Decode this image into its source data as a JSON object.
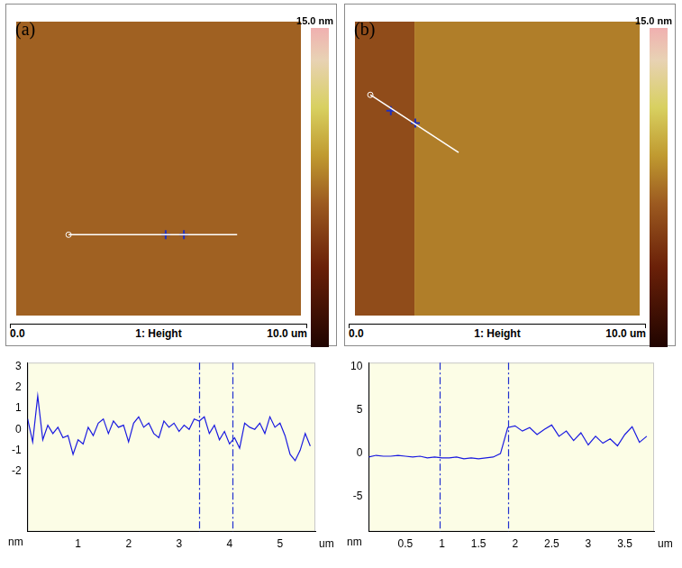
{
  "chart_data": [
    {
      "type": "image",
      "panel": "(a)",
      "xlabel": "1: Height",
      "xlim": [
        0,
        10
      ],
      "ylim": [
        0,
        10
      ],
      "xticks": [
        {
          "value": 0,
          "label": "0.0"
        },
        {
          "value": 10,
          "label": "10.0 um"
        }
      ],
      "tick_labels": false,
      "colorbar": {
        "range": [
          0,
          15
        ],
        "ticks": [
          {
            "value": 15,
            "label": "15.0 nm"
          }
        ]
      },
      "regions": [
        {
          "x": [
            0,
            10
          ],
          "height": 7
        }
      ],
      "profile_line": {
        "x": [
          1.84,
          7.76
        ],
        "y": [
          2.75,
          2.75
        ]
      },
      "cursors": {
        "x": [
          5.25,
          5.89
        ],
        "y": [
          2.75,
          2.75
        ]
      }
    },
    {
      "type": "image",
      "panel": "(b)",
      "xlabel": "1: Height",
      "xlim": [
        0,
        10
      ],
      "ylim": [
        0,
        10
      ],
      "xticks": [
        {
          "value": 0,
          "label": "0.0"
        },
        {
          "value": 10,
          "label": "10.0 um"
        }
      ],
      "tick_labels": false,
      "colorbar": {
        "range": [
          0,
          15
        ],
        "ticks": [
          {
            "value": 15,
            "label": "15.0 nm"
          }
        ]
      },
      "regions": [
        {
          "x": [
            0,
            2.09
          ],
          "height": 6
        },
        {
          "x": [
            2.09,
            10
          ],
          "height": 8
        }
      ],
      "profile_line": {
        "x": [
          0.54,
          3.64
        ],
        "y": [
          7.51,
          5.55
        ]
      },
      "cursors": {
        "x": [
          1.26,
          2.12
        ],
        "y": [
          6.97,
          6.55
        ]
      }
    },
    {
      "type": "line",
      "xlabel": "um",
      "ylabel": "nm",
      "color": "#1a1ae0",
      "grid": false,
      "x": [
        0,
        0.1,
        0.2,
        0.3,
        0.4,
        0.5,
        0.6,
        0.7,
        0.8,
        0.9,
        1.0,
        1.1,
        1.2,
        1.3,
        1.4,
        1.5,
        1.6,
        1.7,
        1.8,
        1.9,
        2.0,
        2.1,
        2.2,
        2.3,
        2.4,
        2.5,
        2.6,
        2.7,
        2.8,
        2.9,
        3.0,
        3.1,
        3.2,
        3.3,
        3.4,
        3.5,
        3.6,
        3.7,
        3.8,
        3.9,
        4.0,
        4.1,
        4.2,
        4.3,
        4.4,
        4.5,
        4.6,
        4.7,
        4.8,
        4.9,
        5.0,
        5.1,
        5.2,
        5.3,
        5.4,
        5.5,
        5.6
      ],
      "values": [
        0.5,
        -0.6,
        1.6,
        -0.5,
        0.2,
        -0.2,
        0.1,
        -0.4,
        -0.3,
        -1.2,
        -0.5,
        -0.7,
        0.1,
        -0.3,
        0.3,
        0.5,
        -0.2,
        0.4,
        0.1,
        0.2,
        -0.6,
        0.3,
        0.6,
        0.1,
        0.3,
        -0.2,
        -0.4,
        0.4,
        0.1,
        0.3,
        -0.1,
        0.2,
        0.0,
        0.5,
        0.4,
        0.6,
        -0.2,
        0.2,
        -0.5,
        -0.1,
        -0.7,
        -0.4,
        -0.9,
        0.3,
        0.1,
        0.0,
        0.3,
        -0.2,
        0.6,
        0.1,
        0.3,
        -0.3,
        -1.2,
        -1.5,
        -1.0,
        -0.2,
        -0.8
      ],
      "xlim": [
        0,
        5.7
      ],
      "xticks": [
        1,
        2,
        3,
        4,
        5
      ],
      "ylim": [
        -4.9,
        3.2
      ],
      "yticks": [
        -2,
        -1,
        0,
        1,
        2,
        3
      ],
      "cursors": [
        3.4,
        4.05
      ]
    },
    {
      "type": "line",
      "xlabel": "um",
      "ylabel": "nm",
      "color": "#1a1ae0",
      "grid": false,
      "x": [
        0,
        0.1,
        0.2,
        0.3,
        0.4,
        0.5,
        0.6,
        0.7,
        0.8,
        0.9,
        1.0,
        1.1,
        1.2,
        1.3,
        1.4,
        1.5,
        1.6,
        1.7,
        1.8,
        1.9,
        2.0,
        2.1,
        2.2,
        2.3,
        2.4,
        2.5,
        2.6,
        2.7,
        2.8,
        2.9,
        3.0,
        3.1,
        3.2,
        3.3,
        3.4,
        3.5,
        3.6,
        3.7,
        3.8
      ],
      "values": [
        -0.4,
        -0.2,
        -0.3,
        -0.3,
        -0.2,
        -0.3,
        -0.4,
        -0.3,
        -0.5,
        -0.4,
        -0.5,
        -0.5,
        -0.4,
        -0.6,
        -0.5,
        -0.6,
        -0.5,
        -0.4,
        0.0,
        3.0,
        3.2,
        2.6,
        3.0,
        2.2,
        2.8,
        3.3,
        2.0,
        2.6,
        1.5,
        2.4,
        1.0,
        2.0,
        1.2,
        1.7,
        0.9,
        2.2,
        3.1,
        1.3,
        2.0
      ],
      "xlim": [
        0,
        3.9
      ],
      "xticks": [
        0.5,
        1,
        1.5,
        2,
        2.5,
        3,
        3.5
      ],
      "ylim": [
        -9,
        10.5
      ],
      "yticks": [
        -5,
        0,
        5,
        10
      ],
      "cursors": [
        0.97,
        1.9
      ]
    }
  ]
}
